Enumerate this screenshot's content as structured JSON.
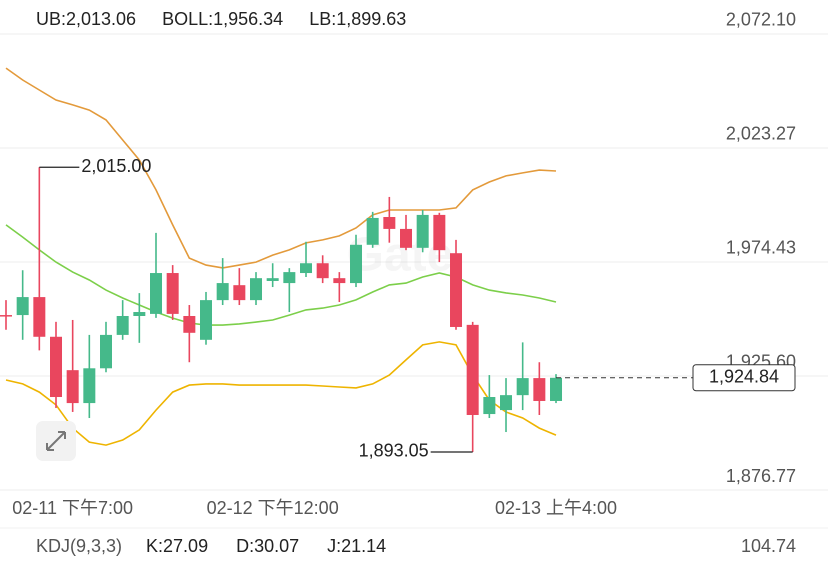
{
  "chart_data": {
    "type": "candlestick",
    "legend": [
      {
        "text": "UB:2,013.06",
        "color": "#e39a3b"
      },
      {
        "text": "BOLL:1,956.34",
        "color": "#7ccf4a"
      },
      {
        "text": "LB:1,899.63",
        "color": "#eeb400"
      }
    ],
    "watermark": "Gate",
    "categories": [
      null,
      null,
      null,
      null,
      "02-11 下午7:00",
      null,
      null,
      null,
      null,
      null,
      null,
      null,
      null,
      null,
      null,
      null,
      "02-12 下午12:00",
      null,
      null,
      null,
      null,
      null,
      null,
      null,
      null,
      null,
      null,
      null,
      null,
      null,
      null,
      null,
      null,
      "02-13 上午4:00"
    ],
    "open": [
      1951.7,
      1951.7,
      1959.4,
      1942.4,
      1928.1,
      1914.0,
      1928.9,
      1943.2,
      1951.3,
      1952.2,
      1969.7,
      1951.3,
      1941.1,
      1958.1,
      1964.5,
      1958.1,
      1966.3,
      1965.4,
      1969.7,
      1973.9,
      1967.5,
      1965.4,
      1981.8,
      1993.7,
      1988.6,
      1980.5,
      1994.6,
      1978.2,
      1947.5,
      1909.3,
      1911.0,
      1917.4,
      1924.7,
      1914.9
    ],
    "high": [
      1958.1,
      1970.9,
      2015.0,
      1948.8,
      1949.6,
      1943.2,
      1948.8,
      1958.1,
      1961.1,
      1986.9,
      1973.1,
      1956.0,
      1961.6,
      1976.1,
      1971.8,
      1970.1,
      1973.9,
      1971.8,
      1983.1,
      1977.3,
      1970.1,
      1986.1,
      1995.9,
      2002.3,
      1994.6,
      1996.7,
      1995.5,
      1983.9,
      1948.8,
      1926.0,
      1924.7,
      1940.0,
      1931.5,
      1926.4
    ],
    "low": [
      1945.4,
      1941.1,
      1936.6,
      1911.9,
      1910.2,
      1907.6,
      1927.2,
      1941.1,
      1939.8,
      1950.5,
      1949.6,
      1931.5,
      1939.0,
      1956.0,
      1956.0,
      1956.0,
      1963.7,
      1953.0,
      1968.0,
      1965.4,
      1957.3,
      1963.7,
      1980.5,
      1982.7,
      1979.5,
      1978.6,
      1974.4,
      1945.4,
      1893.05,
      1907.6,
      1901.6,
      1911.0,
      1908.9,
      1914.0
    ],
    "close": [
      1951.3,
      1959.4,
      1942.4,
      1916.6,
      1914.0,
      1928.9,
      1943.2,
      1951.3,
      1953.0,
      1969.7,
      1952.2,
      1944.1,
      1958.1,
      1965.4,
      1958.1,
      1967.5,
      1967.5,
      1970.1,
      1973.9,
      1967.5,
      1965.4,
      1981.8,
      1993.3,
      1988.6,
      1980.5,
      1994.6,
      1979.5,
      1946.6,
      1908.9,
      1916.6,
      1917.4,
      1924.7,
      1914.9,
      1924.84
    ],
    "up_color": "#45b98a",
    "down_color": "#e9465e",
    "bands": [
      {
        "color": "#e39a3b",
        "values": [
          2057.5,
          2052.4,
          2048.1,
          2043.8,
          2041.7,
          2039.5,
          2035.3,
          2026.7,
          2018.1,
          2005.3,
          1990.3,
          1976.1,
          1973.1,
          1971.9,
          1973.1,
          1974.4,
          1977.4,
          1979.6,
          1982.6,
          1983.9,
          1985.6,
          1989.0,
          1994.6,
          1996.7,
          1996.7,
          1996.7,
          1996.7,
          1997.6,
          2005.3,
          2008.7,
          2011.3,
          2012.6,
          2013.8,
          2013.4
        ]
      },
      {
        "color": "#7ccf4a",
        "values": [
          1990.3,
          1985.1,
          1979.6,
          1974.4,
          1970.1,
          1966.7,
          1962.4,
          1959.0,
          1956.0,
          1953.0,
          1950.4,
          1948.3,
          1947.4,
          1947.4,
          1947.9,
          1948.7,
          1949.6,
          1951.7,
          1953.9,
          1954.7,
          1956.0,
          1958.2,
          1961.6,
          1964.6,
          1965.4,
          1968.0,
          1969.7,
          1968.0,
          1964.6,
          1962.4,
          1961.2,
          1960.3,
          1959.0,
          1957.3
        ]
      },
      {
        "color": "#eeb400",
        "values": [
          1923.9,
          1922.2,
          1918.7,
          1913.2,
          1903.3,
          1897.3,
          1896.0,
          1898.2,
          1902.5,
          1911.0,
          1918.7,
          1921.7,
          1922.2,
          1922.2,
          1921.7,
          1921.7,
          1921.7,
          1921.7,
          1921.7,
          1921.3,
          1920.9,
          1920.5,
          1922.2,
          1926.0,
          1932.5,
          1938.9,
          1940.2,
          1938.9,
          1926.0,
          1915.3,
          1910.2,
          1907.6,
          1903.3,
          1900.3
        ]
      }
    ],
    "ylim": [
      1876.77,
      2086.65
    ],
    "yticks": [
      {
        "value": 2072.1,
        "label": "2,072.10"
      },
      {
        "value": 2023.27,
        "label": "2,023.27"
      },
      {
        "value": 1974.43,
        "label": "1,974.43"
      },
      {
        "value": 1925.6,
        "label": "1,925.60"
      },
      {
        "value": 1876.77,
        "label": "1,876.77"
      }
    ],
    "grid": true,
    "annotations": [
      {
        "text": "2,015.00"
      },
      {
        "text": "1,893.05"
      }
    ],
    "last_price": {
      "value": 1924.84,
      "label": "1,924.84"
    },
    "indicator": {
      "title": "KDJ(9,3,3)",
      "items": [
        {
          "text": "K:27.09",
          "color": "#e39a3b"
        },
        {
          "text": "D:30.07",
          "color": "#7ccf4a"
        },
        {
          "text": "J:21.14",
          "color": "#eeb400"
        }
      ],
      "scale_label": "104.74"
    }
  }
}
